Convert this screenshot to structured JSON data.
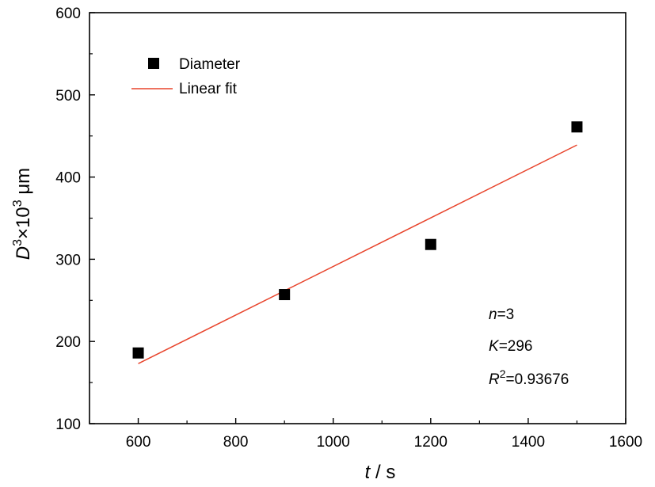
{
  "chart_data": {
    "type": "scatter",
    "xlabel_var": "t",
    "xlabel_unit": " / s",
    "ylabel_var": "D",
    "ylabel_sup": "3",
    "ylabel_mid": "×10",
    "ylabel_sup2": "3",
    "ylabel_unit": " μm",
    "xlim": [
      500,
      1600
    ],
    "ylim": [
      100,
      600
    ],
    "xticks": [
      600,
      800,
      1000,
      1200,
      1400,
      1600
    ],
    "yticks": [
      100,
      200,
      300,
      400,
      500,
      600
    ],
    "series": [
      {
        "name": "Diameter",
        "marker": "square",
        "color": "#000000",
        "x": [
          600,
          900,
          1200,
          1500
        ],
        "y": [
          186,
          257,
          318,
          461
        ]
      }
    ],
    "fit": {
      "name": "Linear fit",
      "color": "#e8442c",
      "x": [
        600,
        1500
      ],
      "y": [
        173,
        439
      ]
    },
    "legend_position": "top-left",
    "annotations": {
      "n_var": "n",
      "n_value": "=3",
      "k_var": "K",
      "k_value": "=296",
      "r_var": "R",
      "r_sup": "2",
      "r_value": "=0.93676"
    }
  }
}
